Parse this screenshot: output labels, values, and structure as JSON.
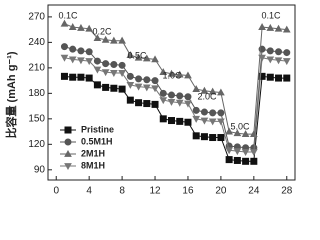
{
  "chart_data": {
    "type": "line",
    "y_label": "比容量 (mAh g⁻¹)",
    "annotations": [
      "0.1C",
      "0.2C",
      "0.5C",
      "1.0C",
      "2.0C",
      "5.0C",
      "0.1C"
    ],
    "x": [
      1,
      2,
      3,
      4,
      5,
      6,
      7,
      8,
      9,
      10,
      11,
      12,
      13,
      14,
      15,
      16,
      17,
      18,
      19,
      20,
      21,
      22,
      23,
      24,
      25,
      26,
      27,
      28
    ],
    "series": [
      {
        "name": "Pristine",
        "color": "#111111",
        "marker": "square",
        "values": [
          200,
          199,
          199,
          198,
          190,
          187,
          186,
          185,
          172,
          169,
          168,
          167,
          150,
          148,
          147,
          146,
          130,
          129,
          128,
          128,
          102,
          101,
          100,
          100,
          200,
          199,
          198,
          198
        ]
      },
      {
        "name": "0.5M1H",
        "color": "#555555",
        "marker": "circle",
        "values": [
          235,
          232,
          230,
          229,
          218,
          215,
          214,
          213,
          200,
          197,
          196,
          195,
          180,
          178,
          177,
          176,
          160,
          158,
          157,
          157,
          118,
          117,
          116,
          116,
          232,
          230,
          229,
          228
        ]
      },
      {
        "name": "2M1H",
        "color": "#666666",
        "marker": "triangle",
        "values": [
          262,
          258,
          257,
          256,
          245,
          243,
          242,
          242,
          225,
          222,
          221,
          220,
          205,
          203,
          202,
          201,
          185,
          183,
          182,
          181,
          135,
          133,
          132,
          132,
          258,
          257,
          256,
          255
        ]
      },
      {
        "name": "8M1H",
        "color": "#777777",
        "marker": "triangle-down",
        "values": [
          222,
          220,
          219,
          218,
          208,
          205,
          204,
          204,
          190,
          188,
          187,
          186,
          172,
          170,
          169,
          168,
          150,
          148,
          147,
          147,
          113,
          112,
          111,
          111,
          222,
          220,
          219,
          218
        ]
      }
    ],
    "xlim": [
      -1,
      29
    ],
    "ylim": [
      78,
      284
    ],
    "xticks": [
      0,
      4,
      8,
      12,
      16,
      20,
      24,
      28
    ],
    "yticks": [
      90,
      120,
      150,
      180,
      210,
      240,
      270
    ],
    "legend": "lower-left"
  }
}
